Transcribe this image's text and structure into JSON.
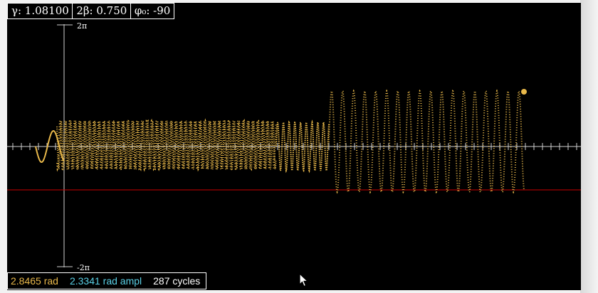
{
  "params": {
    "gamma": "γ: 1.08100",
    "two_beta": "2β: 0.750",
    "phi0": "φ₀: -90"
  },
  "axis": {
    "top_label": "2π",
    "bottom_label": "-2π"
  },
  "status": {
    "rad": "2.8465 rad",
    "ampl": "2.3341 rad ampl",
    "cycles": "287 cycles"
  },
  "colors": {
    "background": "#000000",
    "trace": "#e8b84a",
    "axis": "#cfcfcf",
    "reference_line": "#cc0000",
    "ampl_text": "#5ad0e6",
    "rad_text": "#e8b84a",
    "cycles_text": "#ffffff"
  },
  "icons": {
    "cursor": "mouse-pointer-icon"
  }
}
